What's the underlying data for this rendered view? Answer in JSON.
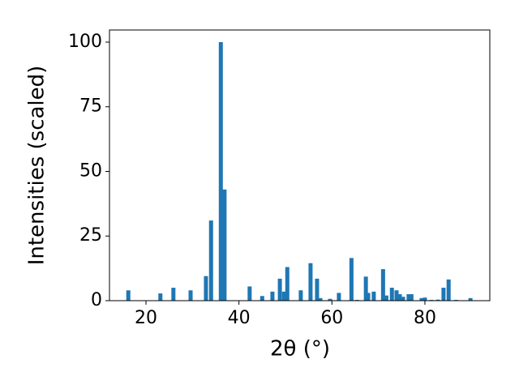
{
  "chart_data": {
    "type": "bar",
    "x_label": "2θ (°)",
    "y_label": "Intensities (scaled)",
    "x": [
      16.2,
      23.1,
      25.9,
      29.6,
      32.9,
      34.0,
      36.1,
      36.9,
      42.3,
      45.0,
      47.2,
      48.8,
      49.7,
      50.4,
      53.3,
      55.4,
      56.8,
      57.5,
      59.6,
      61.5,
      64.2,
      65.4,
      67.3,
      67.8,
      69.0,
      71.0,
      71.7,
      72.9,
      73.9,
      74.6,
      75.3,
      76.5,
      77.1,
      79.3,
      80.0,
      81.4,
      82.8,
      84.0,
      85.1,
      86.7,
      89.8
    ],
    "values": [
      4,
      2.8,
      5,
      4,
      9.5,
      31,
      100,
      43,
      5.5,
      1.8,
      3.5,
      8.5,
      3.5,
      13,
      4,
      14.5,
      8.5,
      1,
      0.7,
      3,
      16.5,
      0.3,
      9.3,
      3,
      3.5,
      12.2,
      2,
      5,
      4,
      2.5,
      1.5,
      2.5,
      2.5,
      1,
      1.2,
      0.3,
      0.4,
      5,
      8.2,
      0.3,
      1
    ],
    "color": "#1f77b4",
    "xlim": [
      12.15,
      93.96
    ],
    "ylim": [
      0,
      104.7
    ],
    "xticks": [
      20,
      40,
      60,
      80
    ],
    "yticks": [
      0,
      25,
      50,
      75,
      100
    ]
  }
}
